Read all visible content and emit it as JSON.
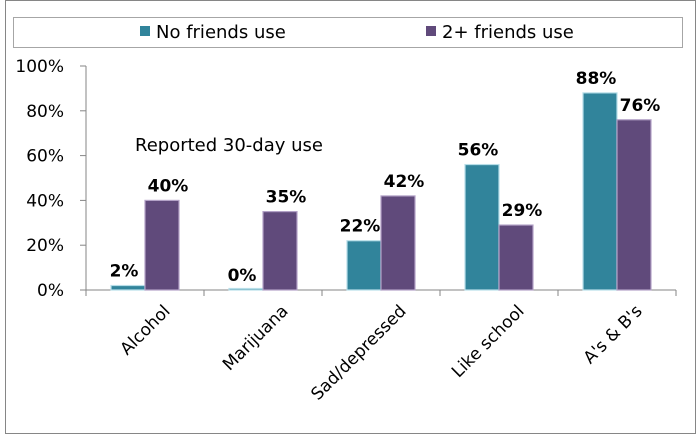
{
  "chart_data": {
    "type": "bar",
    "categories": [
      "Alcohol",
      "Marijuana",
      "Sad/depressed",
      "Like school",
      "A's & B's"
    ],
    "series": [
      {
        "name": "No friends use",
        "values": [
          2,
          0,
          22,
          56,
          88
        ],
        "labels": [
          "2%",
          "0%",
          "22%",
          "56%",
          "88%"
        ]
      },
      {
        "name": "2+ friends use",
        "values": [
          40,
          35,
          42,
          29,
          76
        ],
        "labels": [
          "40%",
          "35%",
          "42%",
          "29%",
          "76%"
        ]
      }
    ],
    "ylim": [
      0,
      100
    ],
    "yticks": [
      "0%",
      "20%",
      "40%",
      "60%",
      "80%",
      "100%"
    ],
    "annotation": "Reported 30-day use",
    "legend_position": "top",
    "grid": false
  },
  "colors": {
    "series": [
      "#31849b",
      "#604a7b"
    ],
    "series_edge": [
      "#b7dee8",
      "#b3a2c7"
    ],
    "axis": "#868686",
    "text": "#000000"
  }
}
